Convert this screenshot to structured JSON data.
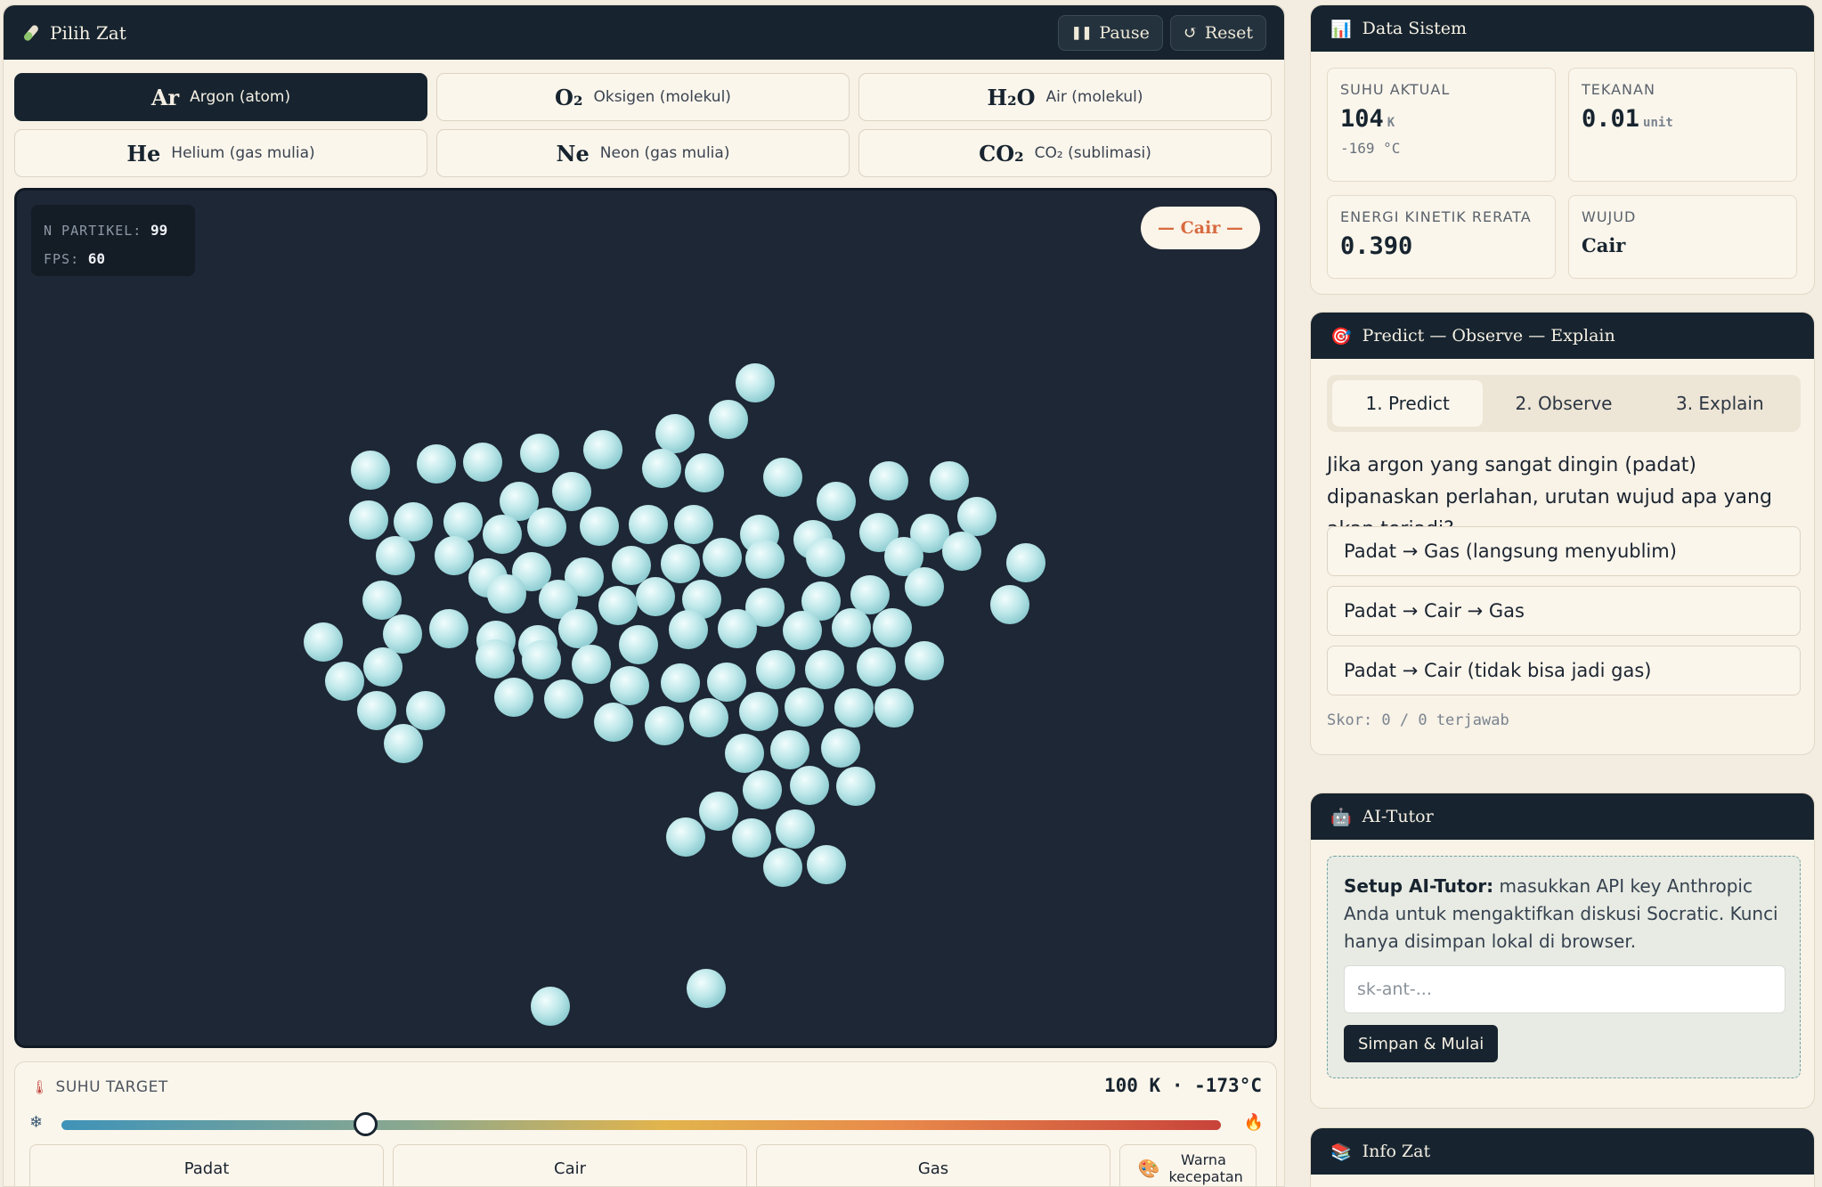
{
  "header": {
    "title": "Pilih Zat",
    "pause_label": "Pause",
    "reset_label": "Reset"
  },
  "substances": [
    {
      "formula": "Ar",
      "name": "Argon (atom)",
      "active": true
    },
    {
      "formula": "O₂",
      "name": "Oksigen (molekul)",
      "active": false
    },
    {
      "formula": "H₂O",
      "name": "Air (molekul)",
      "active": false
    },
    {
      "formula": "He",
      "name": "Helium (gas mulia)",
      "active": false
    },
    {
      "formula": "Ne",
      "name": "Neon (gas mulia)",
      "active": false
    },
    {
      "formula": "CO₂",
      "name": "CO₂ (sublimasi)",
      "active": false
    }
  ],
  "simulation": {
    "n_label": "N PARTIKEL:",
    "n_value": "99",
    "fps_label": "FPS:",
    "fps_value": "60",
    "phase_badge": "— Cair —",
    "particle_color": "#bfe8ea"
  },
  "temperature": {
    "label": "SUHU TARGET",
    "readout": "100 K · -173°C",
    "slider_fraction": 0.262,
    "phase_buttons": [
      "Padat",
      "Cair",
      "Gas"
    ],
    "color_button": "Warna kecepatan"
  },
  "data_sistem": {
    "title": "Data Sistem",
    "suhu_label": "SUHU AKTUAL",
    "suhu_value": "104",
    "suhu_unit": "K",
    "suhu_celsius": "-169 °C",
    "tekanan_label": "TEKANAN",
    "tekanan_value": "0.01",
    "tekanan_unit": "unit",
    "energi_label": "ENERGI KINETIK RERATA",
    "energi_value": "0.390",
    "wujud_label": "WUJUD",
    "wujud_value": "Cair"
  },
  "poe": {
    "title": "Predict — Observe — Explain",
    "tabs": [
      "1. Predict",
      "2. Observe",
      "3. Explain"
    ],
    "question": "Jika argon yang sangat dingin (padat) dipanaskan perlahan, urutan wujud apa yang akan terjadi?",
    "options": [
      "Padat → Gas (langsung menyublim)",
      "Padat → Cair → Gas",
      "Padat → Cair (tidak bisa jadi gas)"
    ],
    "score": "Skor: 0 / 0 terjawab"
  },
  "ai_tutor": {
    "title": "AI-Tutor",
    "setup_bold": "Setup AI-Tutor:",
    "setup_text": " masukkan API key Anthropic Anda untuk mengaktifkan diskusi Socratic. Kunci hanya disimpan lokal di browser.",
    "placeholder": "sk-ant-...",
    "save_label": "Simpan & Mulai"
  },
  "info_zat": {
    "title": "Info Zat"
  }
}
